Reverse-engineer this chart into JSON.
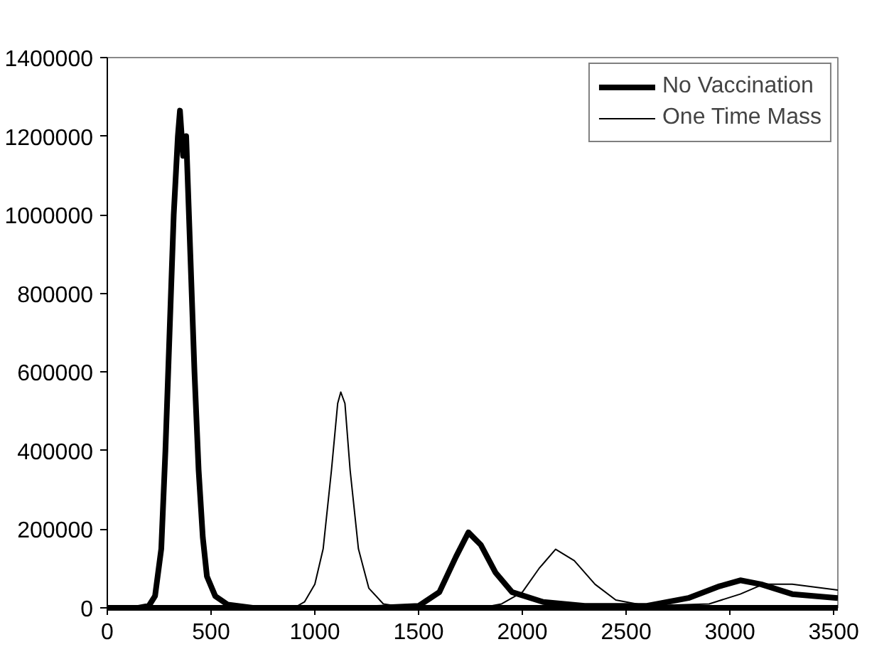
{
  "chart_data": {
    "type": "line",
    "xlim": [
      0,
      3520
    ],
    "xticks": [
      0,
      500,
      1000,
      1500,
      2000,
      2500,
      3000,
      3500
    ],
    "ylim": [
      0,
      1400000
    ],
    "yticks": [
      0,
      200000,
      400000,
      600000,
      800000,
      1000000,
      1200000,
      1400000
    ],
    "grid": false,
    "legend": "top right",
    "series": [
      {
        "name": "No Vaccination",
        "color": "#000000",
        "x": [
          0,
          150,
          200,
          230,
          260,
          280,
          300,
          320,
          340,
          350,
          365,
          380,
          400,
          420,
          440,
          460,
          480,
          520,
          580,
          700,
          1300,
          1500,
          1600,
          1680,
          1740,
          1800,
          1870,
          1950,
          2100,
          2300,
          2600,
          2800,
          2950,
          3050,
          3150,
          3300,
          3520
        ],
        "values": [
          0,
          0,
          5000,
          30000,
          150000,
          400000,
          700000,
          1000000,
          1200000,
          1265000,
          1150000,
          1200000,
          900000,
          600000,
          350000,
          180000,
          80000,
          30000,
          8000,
          0,
          0,
          5000,
          40000,
          130000,
          192000,
          160000,
          90000,
          40000,
          15000,
          5000,
          5000,
          25000,
          55000,
          70000,
          60000,
          35000,
          25000
        ]
      },
      {
        "name": "One Time Mass",
        "color": "#000000",
        "x": [
          0,
          150,
          200,
          230,
          260,
          280,
          300,
          320,
          340,
          350,
          365,
          380,
          400,
          420,
          440,
          460,
          480,
          520,
          580,
          700,
          900,
          950,
          1000,
          1040,
          1080,
          1110,
          1125,
          1145,
          1170,
          1210,
          1260,
          1330,
          1450,
          1800,
          1900,
          2000,
          2080,
          2160,
          2250,
          2350,
          2450,
          2600,
          2900,
          3050,
          3160,
          3300,
          3520
        ],
        "values": [
          0,
          0,
          5000,
          30000,
          150000,
          400000,
          700000,
          1000000,
          1200000,
          1265000,
          1150000,
          1200000,
          900000,
          600000,
          350000,
          180000,
          80000,
          30000,
          8000,
          0,
          0,
          15000,
          60000,
          150000,
          350000,
          520000,
          549000,
          520000,
          350000,
          150000,
          50000,
          10000,
          0,
          0,
          10000,
          40000,
          100000,
          149000,
          120000,
          60000,
          20000,
          5000,
          10000,
          35000,
          60000,
          60000,
          45000
        ]
      }
    ]
  }
}
